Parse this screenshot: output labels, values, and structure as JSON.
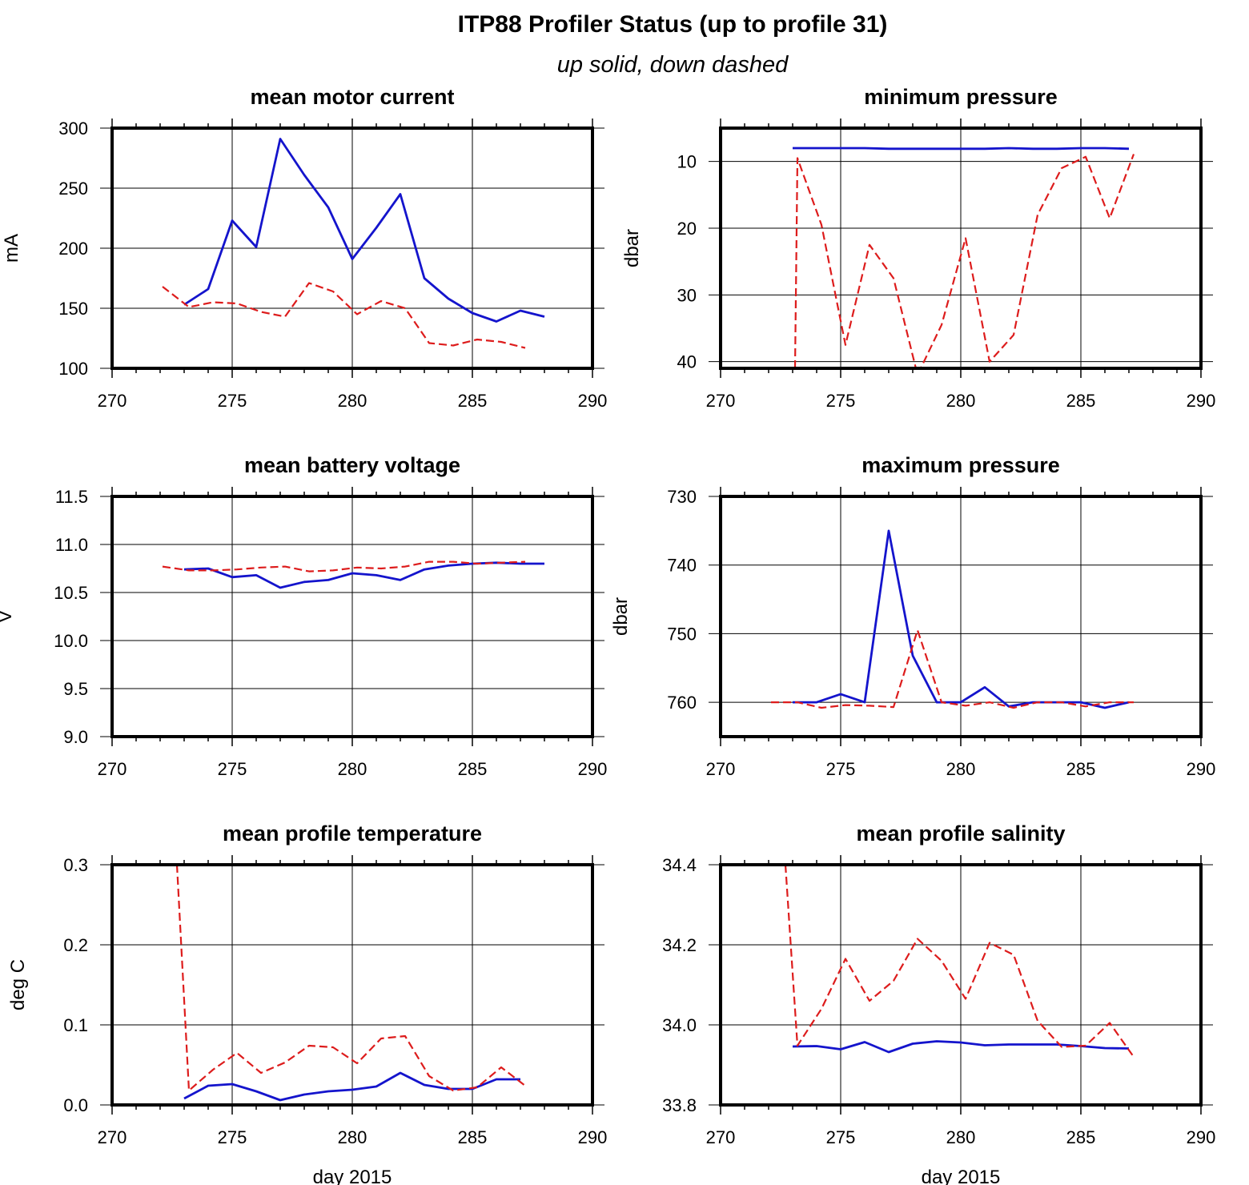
{
  "figure": {
    "title": "ITP88 Profiler Status (up to profile 31)",
    "subtitle": "up solid, down dashed"
  },
  "colors": {
    "up": "#1414cc",
    "down": "#dd1c1c",
    "axes": "#000000",
    "background": "#ffffff"
  },
  "chart_data": [
    {
      "id": "motor-current",
      "type": "line",
      "title": "mean motor current",
      "xlabel": "",
      "ylabel": "mA",
      "xlim": [
        270,
        290
      ],
      "ylim": [
        100,
        300
      ],
      "inverted_y": false,
      "xticks": [
        "270",
        "275",
        "280",
        "285",
        "290"
      ],
      "yticks": [
        "100",
        "150",
        "200",
        "250",
        "300"
      ],
      "ytick_values": [
        100,
        150,
        200,
        250,
        300
      ],
      "grid": true,
      "series": [
        {
          "style": "solid",
          "x": [
            273,
            274,
            275,
            276,
            277,
            278,
            279,
            280,
            281,
            282,
            283,
            284,
            285,
            286,
            287,
            288
          ],
          "y": [
            153,
            166,
            223,
            201,
            291,
            261,
            234,
            191,
            217,
            245,
            175,
            158,
            146,
            139,
            148,
            143
          ]
        },
        {
          "style": "dashed",
          "x": [
            272.1,
            273.2,
            274.2,
            275.2,
            276.2,
            277.2,
            278.2,
            279.2,
            280.2,
            281.2,
            282.2,
            283.2,
            284.2,
            285.2,
            286.2,
            287.2
          ],
          "y": [
            168,
            151,
            155,
            154,
            147,
            143,
            171,
            164,
            145,
            156,
            150,
            121,
            119,
            124,
            122,
            117
          ]
        }
      ]
    },
    {
      "id": "min-pressure",
      "type": "line",
      "title": "minimum pressure",
      "xlabel": "",
      "ylabel": "dbar",
      "xlim": [
        270,
        290
      ],
      "ylim": [
        5,
        41
      ],
      "inverted_y": true,
      "xticks": [
        "270",
        "275",
        "280",
        "285",
        "290"
      ],
      "yticks": [
        "10",
        "20",
        "30",
        "40"
      ],
      "ytick_values": [
        10,
        20,
        30,
        40
      ],
      "grid": true,
      "series": [
        {
          "style": "solid",
          "x": [
            273,
            274,
            275,
            276,
            277,
            278,
            279,
            280,
            281,
            282,
            283,
            284,
            285,
            286,
            287
          ],
          "y": [
            8.0,
            8.0,
            8.0,
            8.0,
            8.1,
            8.1,
            8.1,
            8.1,
            8.1,
            8.0,
            8.1,
            8.1,
            8.0,
            8.0,
            8.1
          ]
        },
        {
          "style": "dashed",
          "x": [
            273.1,
            273.2,
            274.2,
            275.2,
            276.2,
            277.2,
            278.2,
            279.2,
            280.2,
            281.2,
            282.2,
            283.2,
            284.2,
            285.2,
            286.2,
            287.2
          ],
          "y": [
            41,
            9.5,
            19.5,
            37.5,
            22.5,
            27.5,
            42,
            34.5,
            21.5,
            40,
            36,
            18,
            11,
            9.3,
            18.5,
            8.9
          ]
        }
      ]
    },
    {
      "id": "battery-voltage",
      "type": "line",
      "title": "mean battery voltage",
      "xlabel": "",
      "ylabel": "V",
      "xlim": [
        270,
        290
      ],
      "ylim": [
        9.0,
        11.5
      ],
      "inverted_y": false,
      "xticks": [
        "270",
        "275",
        "280",
        "285",
        "290"
      ],
      "yticks": [
        "9.0",
        "9.5",
        "10.0",
        "10.5",
        "11.0",
        "11.5"
      ],
      "ytick_values": [
        9.0,
        9.5,
        10.0,
        10.5,
        11.0,
        11.5
      ],
      "grid": true,
      "series": [
        {
          "style": "solid",
          "x": [
            273,
            274,
            275,
            276,
            277,
            278,
            279,
            280,
            281,
            282,
            283,
            284,
            285,
            286,
            287,
            288
          ],
          "y": [
            10.74,
            10.75,
            10.66,
            10.68,
            10.55,
            10.61,
            10.63,
            10.7,
            10.68,
            10.63,
            10.74,
            10.78,
            10.8,
            10.81,
            10.8,
            10.8
          ]
        },
        {
          "style": "dashed",
          "x": [
            272.1,
            273.2,
            274.2,
            275.2,
            276.2,
            277.2,
            278.2,
            279.2,
            280.2,
            281.2,
            282.2,
            283.2,
            284.2,
            285.2,
            286.2,
            287.2
          ],
          "y": [
            10.77,
            10.73,
            10.73,
            10.74,
            10.76,
            10.77,
            10.72,
            10.73,
            10.76,
            10.75,
            10.77,
            10.82,
            10.82,
            10.8,
            10.81,
            10.82
          ]
        }
      ]
    },
    {
      "id": "max-pressure",
      "type": "line",
      "title": "maximum pressure",
      "xlabel": "",
      "ylabel": "dbar",
      "xlim": [
        270,
        290
      ],
      "ylim": [
        730,
        765
      ],
      "inverted_y": true,
      "xticks": [
        "270",
        "275",
        "280",
        "285",
        "290"
      ],
      "yticks": [
        "730",
        "740",
        "750",
        "760"
      ],
      "ytick_values": [
        730,
        740,
        750,
        760
      ],
      "grid": true,
      "series": [
        {
          "style": "solid",
          "x": [
            273,
            274,
            275,
            276,
            277,
            278,
            279,
            280,
            281,
            282,
            283,
            284,
            285,
            286,
            287
          ],
          "y": [
            760,
            760,
            758.8,
            760,
            735,
            753.2,
            760,
            760,
            757.8,
            760.6,
            760,
            760,
            760,
            760.8,
            760
          ]
        },
        {
          "style": "dashed",
          "x": [
            272.1,
            273.2,
            274.2,
            275.2,
            276.2,
            277.2,
            278.2,
            279.2,
            280.2,
            281.2,
            282.2,
            283.2,
            284.2,
            285.2,
            286.2,
            287.2
          ],
          "y": [
            760,
            760,
            760.8,
            760.4,
            760.5,
            760.7,
            749.5,
            760,
            760.5,
            760,
            760.8,
            760,
            760,
            760.6,
            760,
            760
          ]
        }
      ]
    },
    {
      "id": "profile-temperature",
      "type": "line",
      "title": "mean profile temperature",
      "xlabel": "day 2015",
      "ylabel": "deg C",
      "xlim": [
        270,
        290
      ],
      "ylim": [
        0.0,
        0.3
      ],
      "inverted_y": false,
      "xticks": [
        "270",
        "275",
        "280",
        "285",
        "290"
      ],
      "yticks": [
        "0.0",
        "0.1",
        "0.2",
        "0.3"
      ],
      "ytick_values": [
        0.0,
        0.1,
        0.2,
        0.3
      ],
      "grid": true,
      "series": [
        {
          "style": "solid",
          "x": [
            273,
            274,
            275,
            276,
            277,
            278,
            279,
            280,
            281,
            282,
            283,
            284,
            285,
            286,
            287
          ],
          "y": [
            0.008,
            0.024,
            0.026,
            0.017,
            0.006,
            0.013,
            0.017,
            0.019,
            0.023,
            0.04,
            0.025,
            0.02,
            0.02,
            0.032,
            0.032
          ]
        },
        {
          "style": "dashed",
          "x": [
            272.7,
            273.2,
            274.2,
            275.2,
            276.2,
            277.2,
            278.2,
            279.2,
            280.2,
            281.2,
            282.2,
            283.2,
            284.2,
            285.2,
            286.2,
            287.2
          ],
          "y": [
            0.3,
            0.018,
            0.044,
            0.065,
            0.04,
            0.053,
            0.074,
            0.072,
            0.052,
            0.083,
            0.086,
            0.036,
            0.018,
            0.022,
            0.047,
            0.024
          ]
        }
      ]
    },
    {
      "id": "profile-salinity",
      "type": "line",
      "title": "mean profile salinity",
      "xlabel": "day 2015",
      "ylabel": "",
      "xlim": [
        270,
        290
      ],
      "ylim": [
        33.8,
        34.4
      ],
      "inverted_y": false,
      "xticks": [
        "270",
        "275",
        "280",
        "285",
        "290"
      ],
      "yticks": [
        "33.8",
        "34.0",
        "34.2",
        "34.4"
      ],
      "ytick_values": [
        33.8,
        34.0,
        34.2,
        34.4
      ],
      "grid": true,
      "series": [
        {
          "style": "solid",
          "x": [
            273,
            274,
            275,
            276,
            277,
            278,
            279,
            280,
            281,
            282,
            283,
            284,
            285,
            286,
            287
          ],
          "y": [
            33.946,
            33.947,
            33.939,
            33.957,
            33.932,
            33.953,
            33.959,
            33.956,
            33.949,
            33.951,
            33.951,
            33.951,
            33.947,
            33.942,
            33.941
          ]
        },
        {
          "style": "dashed",
          "x": [
            272.7,
            273.2,
            274.2,
            275.2,
            276.2,
            277.2,
            278.2,
            279.2,
            280.2,
            281.2,
            282.2,
            283.2,
            284.2,
            285.2,
            286.2,
            287.2
          ],
          "y": [
            34.4,
            33.948,
            34.04,
            34.165,
            34.06,
            34.11,
            34.215,
            34.16,
            34.065,
            34.205,
            34.175,
            34.01,
            33.945,
            33.948,
            34.005,
            33.92
          ]
        }
      ]
    }
  ]
}
